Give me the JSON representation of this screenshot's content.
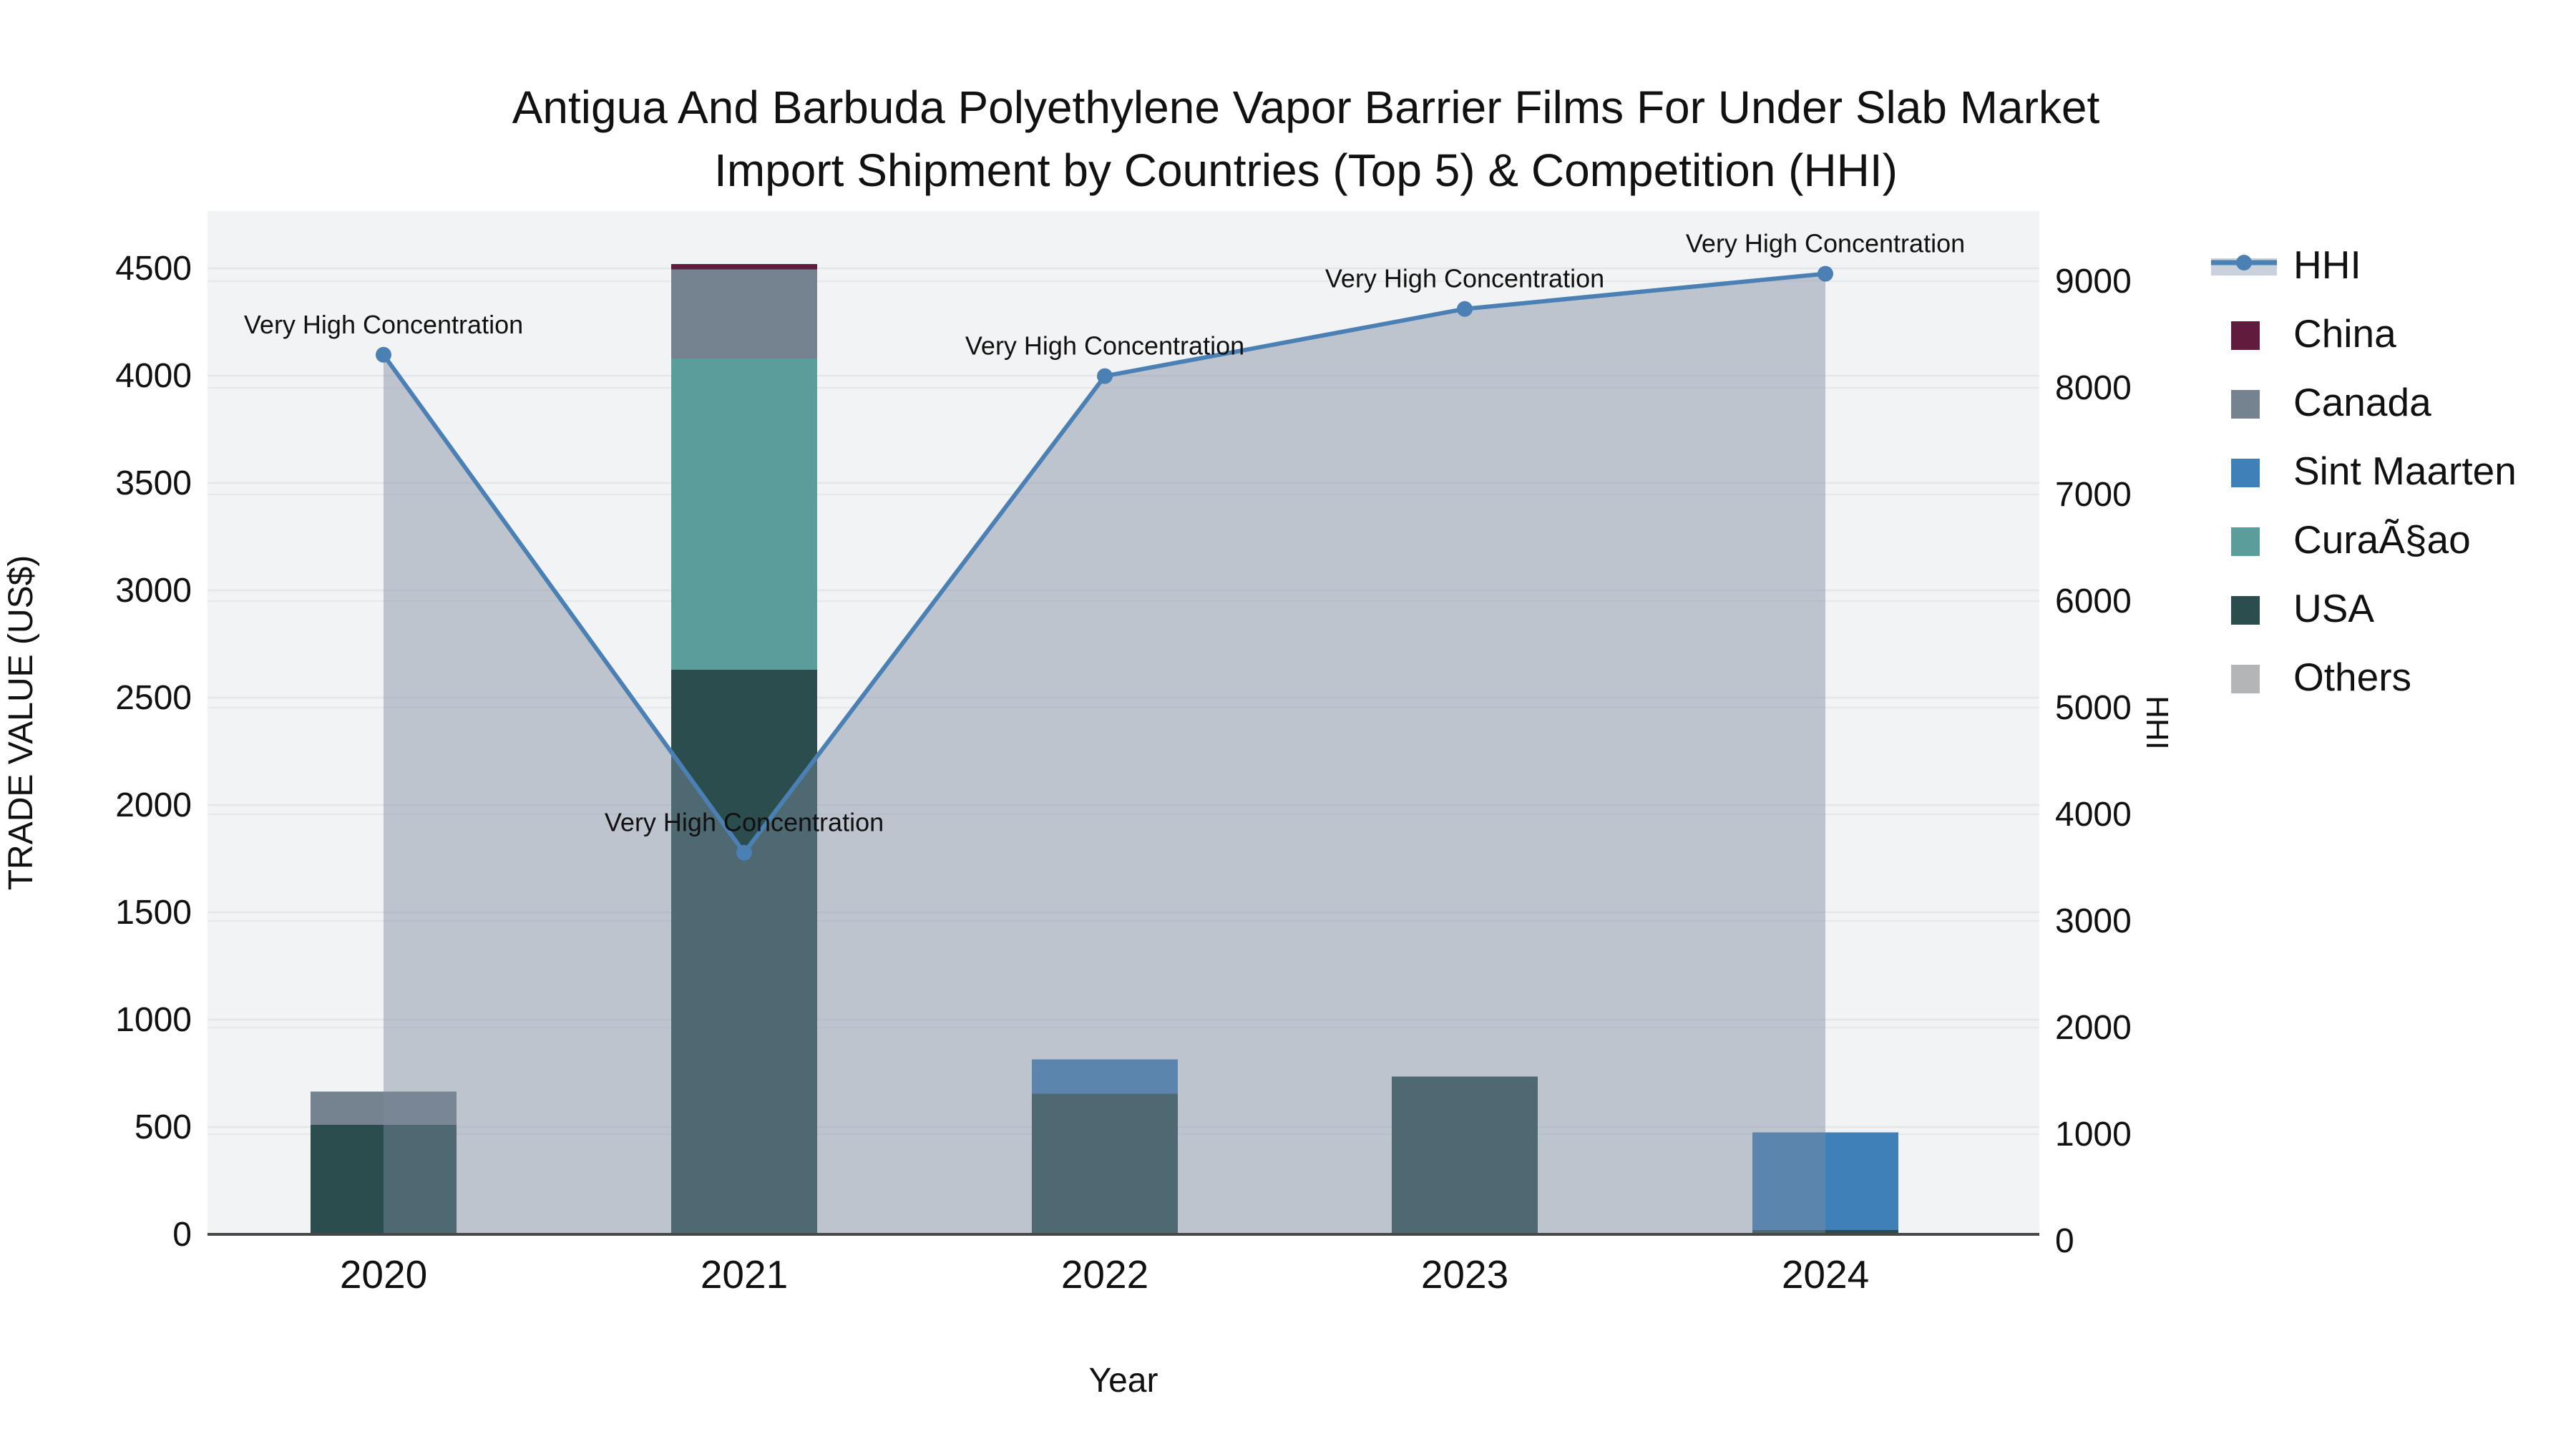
{
  "title": {
    "line1": "Antigua And Barbuda Polyethylene Vapor Barrier Films For Under Slab Market",
    "line2": "Import Shipment by Countries (Top 5) & Competition (HHI)"
  },
  "x_axis": {
    "title": "Year",
    "categories": [
      "2020",
      "2021",
      "2022",
      "2023",
      "2024"
    ]
  },
  "y_left": {
    "title": "TRADE VALUE (US$)",
    "ticks": [
      "0",
      "500",
      "1000",
      "1500",
      "2000",
      "2500",
      "3000",
      "3500",
      "4000",
      "4500"
    ]
  },
  "y_right": {
    "title": "HHI",
    "ticks": [
      "0",
      "1000",
      "2000",
      "3000",
      "4000",
      "5000",
      "6000",
      "7000",
      "8000",
      "9000"
    ]
  },
  "legend": {
    "items": [
      {
        "label": "HHI",
        "type": "line",
        "color": "#4b80b5",
        "band_color": "#c9d2dc"
      },
      {
        "label": "China",
        "type": "swatch",
        "color": "#601c3c"
      },
      {
        "label": "Canada",
        "type": "swatch",
        "color": "#75828f"
      },
      {
        "label": "Sint Maarten",
        "type": "swatch",
        "color": "#4080b8"
      },
      {
        "label": "CuraÃ§ao",
        "type": "swatch",
        "color": "#5b9d9b"
      },
      {
        "label": "USA",
        "type": "swatch",
        "color": "#2b4d4d"
      },
      {
        "label": "Others",
        "type": "swatch",
        "color": "#b3b5b6"
      }
    ]
  },
  "annotation_label": "Very High Concentration",
  "colors": {
    "plot_bg": "#f2f3f4",
    "gridline": "#e4e7e9",
    "axis_line": "#474747",
    "line": "#4b80b5",
    "area_fill": "rgba(124,140,160,0.45)",
    "text": "#111111"
  },
  "chart_data": {
    "type": "bar+line",
    "title": "Antigua And Barbuda Polyethylene Vapor Barrier Films For Under Slab Market Import Shipment by Countries (Top 5) & Competition (HHI)",
    "categories": [
      "2020",
      "2021",
      "2022",
      "2023",
      "2024"
    ],
    "xlabel": "Year",
    "ylabel_left": "TRADE VALUE (US$)",
    "ylabel_right": "HHI",
    "ylim_left": [
      0,
      4766
    ],
    "ylim_right": [
      0,
      9630
    ],
    "grid": true,
    "legend_position": "right",
    "bar_stack_note": "stacked bottom-to-top: USA, CuraÃ§ao, Sint Maarten, Canada, China; values estimated from gridlines",
    "series": [
      {
        "name": "China",
        "color": "#601c3c",
        "values": [
          0,
          25,
          0,
          0,
          0
        ]
      },
      {
        "name": "Canada",
        "color": "#75828f",
        "values": [
          155,
          415,
          0,
          0,
          0
        ]
      },
      {
        "name": "Sint Maarten",
        "color": "#4080b8",
        "values": [
          0,
          0,
          160,
          0,
          455
        ]
      },
      {
        "name": "CuraÃ§ao",
        "color": "#5b9d9b",
        "values": [
          0,
          1450,
          0,
          0,
          0
        ]
      },
      {
        "name": "USA",
        "color": "#2b4d4d",
        "values": [
          510,
          2630,
          655,
          735,
          20
        ]
      },
      {
        "name": "Others",
        "color": "#b3b5b6",
        "values": [
          0,
          0,
          0,
          0,
          0
        ]
      }
    ],
    "line_series": {
      "name": "HHI",
      "color": "#4b80b5",
      "values": [
        8310,
        3640,
        8110,
        8740,
        9070
      ],
      "area_fill": "rgba(124,140,160,0.45)",
      "annotations": [
        "Very High Concentration",
        "Very High Concentration",
        "Very High Concentration",
        "Very High Concentration",
        "Very High Concentration"
      ]
    }
  }
}
